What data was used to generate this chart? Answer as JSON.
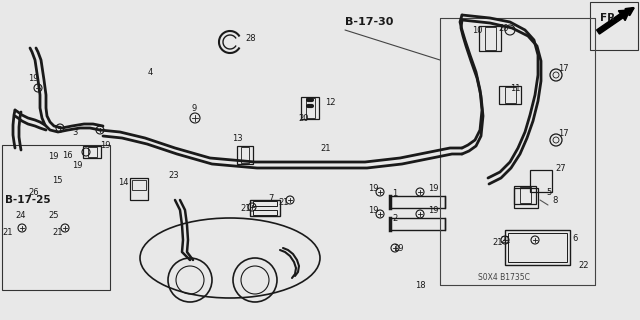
{
  "bg_color": "#e8e8e8",
  "line_color": "#1a1a1a",
  "section_b1725": "B-17-25",
  "section_b1730": "B-17-30",
  "fr_label": "FR.",
  "watermark": "S0X4 B1735C",
  "figsize": [
    6.4,
    3.2
  ],
  "dpi": 100
}
